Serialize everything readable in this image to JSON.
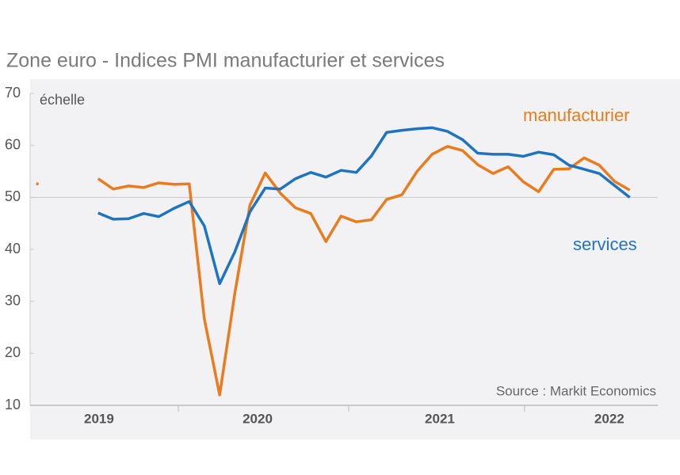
{
  "chart_data": {
    "type": "line",
    "title": "Zone euro - Indices PMI manufacturier et services",
    "y_axis_label": "échelle",
    "annotation": "Source : Markit Economics",
    "x": [
      2019.292,
      2019.375,
      2019.458,
      2019.542,
      2019.625,
      2019.708,
      2019.792,
      2019.875,
      2019.958,
      2020.042,
      2020.125,
      2020.208,
      2020.292,
      2020.375,
      2020.458,
      2020.542,
      2020.625,
      2020.708,
      2020.792,
      2020.875,
      2020.958,
      2021.042,
      2021.125,
      2021.208,
      2021.292,
      2021.375,
      2021.458,
      2021.542,
      2021.625,
      2021.708,
      2021.792,
      2021.875,
      2021.958,
      2022.042,
      2022.125,
      2022.208,
      2022.292,
      2022.375,
      2022.458,
      2022.542
    ],
    "series": [
      {
        "name": "manufacturier",
        "color": "#e87c1e",
        "values": [
          52.6,
          null,
          null,
          null,
          53.6,
          51.6,
          52.2,
          51.9,
          52.8,
          52.5,
          52.6,
          26.6,
          12,
          31.5,
          48.5,
          54.7,
          50.8,
          48,
          46.9,
          41.5,
          46.4,
          45.3,
          45.7,
          49.6,
          50.5,
          55,
          58.3,
          59.8,
          59,
          56.3,
          54.6,
          55.9,
          53,
          51.1,
          55.4,
          55.5,
          57.6,
          56.2,
          53.1,
          51.4
        ]
      },
      {
        "name": "services",
        "color": "#1f74c0",
        "values": [
          null,
          null,
          null,
          null,
          47,
          45.8,
          45.9,
          46.9,
          46.3,
          47.9,
          49.2,
          44.5,
          33.4,
          39.5,
          47.2,
          51.8,
          51.6,
          53.6,
          54.8,
          53.9,
          55.2,
          54.8,
          58,
          62.5,
          62.9,
          63.2,
          63.4,
          62.7,
          61.1,
          58.5,
          58.3,
          58.3,
          57.9,
          58.7,
          58.2,
          56.2,
          55.4,
          54.6,
          52.3,
          50
        ]
      }
    ],
    "xlim": [
      2019.252,
      2022.696
    ],
    "xticks": [
      {
        "value": 2019.63,
        "label": "2019"
      },
      {
        "value": 2020.5,
        "label": "2020"
      },
      {
        "value": 2021.5,
        "label": "2021"
      },
      {
        "value": 2022.43,
        "label": "2022"
      }
    ],
    "ylim": [
      10,
      70
    ],
    "yticks": [
      10,
      20,
      30,
      40,
      50,
      60,
      70
    ],
    "reference_line": 50
  }
}
